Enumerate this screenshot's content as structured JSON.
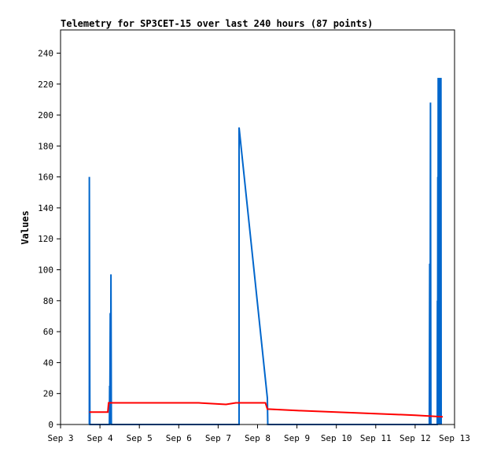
{
  "chart_data": {
    "type": "line",
    "title": "Telemetry for SP3CET-15 over last 240 hours (87 points)",
    "xlabel": "",
    "ylabel": "Values",
    "xlim": [
      "Sep 3",
      "Sep 13"
    ],
    "ylim": [
      0,
      255
    ],
    "x_ticks": [
      "Sep 3",
      "Sep 4",
      "Sep 5",
      "Sep 6",
      "Sep 7",
      "Sep 8",
      "Sep 9",
      "Sep 10",
      "Sep 11",
      "Sep 12",
      "Sep 13"
    ],
    "y_ticks": [
      0,
      20,
      40,
      60,
      80,
      100,
      120,
      140,
      160,
      180,
      200,
      220,
      240
    ],
    "grid": false,
    "legend": "none",
    "series": [
      {
        "color": "#0066cc",
        "points": [
          [
            0.73,
            0
          ],
          [
            0.73,
            160
          ],
          [
            0.745,
            0
          ],
          [
            1.24,
            0
          ],
          [
            1.245,
            25
          ],
          [
            1.25,
            0
          ],
          [
            1.262,
            72
          ],
          [
            1.27,
            0
          ],
          [
            1.28,
            97
          ],
          [
            1.29,
            0
          ],
          [
            4.53,
            0
          ],
          [
            4.53,
            192
          ],
          [
            5.25,
            17
          ],
          [
            5.26,
            0
          ],
          [
            9.36,
            0
          ],
          [
            9.37,
            104
          ],
          [
            9.38,
            0
          ],
          [
            9.39,
            208
          ],
          [
            9.4,
            0
          ],
          [
            9.56,
            0
          ],
          [
            9.565,
            80
          ],
          [
            9.57,
            0
          ],
          [
            9.575,
            160
          ],
          [
            9.58,
            0
          ],
          [
            9.585,
            224
          ],
          [
            9.59,
            0
          ],
          [
            9.6,
            224
          ],
          [
            9.61,
            80
          ],
          [
            9.62,
            0
          ],
          [
            9.625,
            224
          ],
          [
            9.63,
            27
          ],
          [
            9.64,
            135
          ],
          [
            9.65,
            0
          ],
          [
            9.655,
            224
          ],
          [
            9.66,
            0
          ]
        ]
      },
      {
        "color": "#ff0000",
        "points": [
          [
            0.73,
            8
          ],
          [
            1.2,
            8
          ],
          [
            1.22,
            14
          ],
          [
            2.5,
            14
          ],
          [
            3.5,
            14
          ],
          [
            4.2,
            13
          ],
          [
            4.45,
            14
          ],
          [
            5.2,
            14
          ],
          [
            5.25,
            10
          ],
          [
            6.0,
            9
          ],
          [
            7.0,
            8
          ],
          [
            8.0,
            7
          ],
          [
            9.0,
            6
          ],
          [
            9.7,
            5
          ]
        ]
      },
      {
        "color": "#000000",
        "points": [
          [
            0.73,
            0
          ],
          [
            9.7,
            0
          ]
        ]
      }
    ]
  }
}
